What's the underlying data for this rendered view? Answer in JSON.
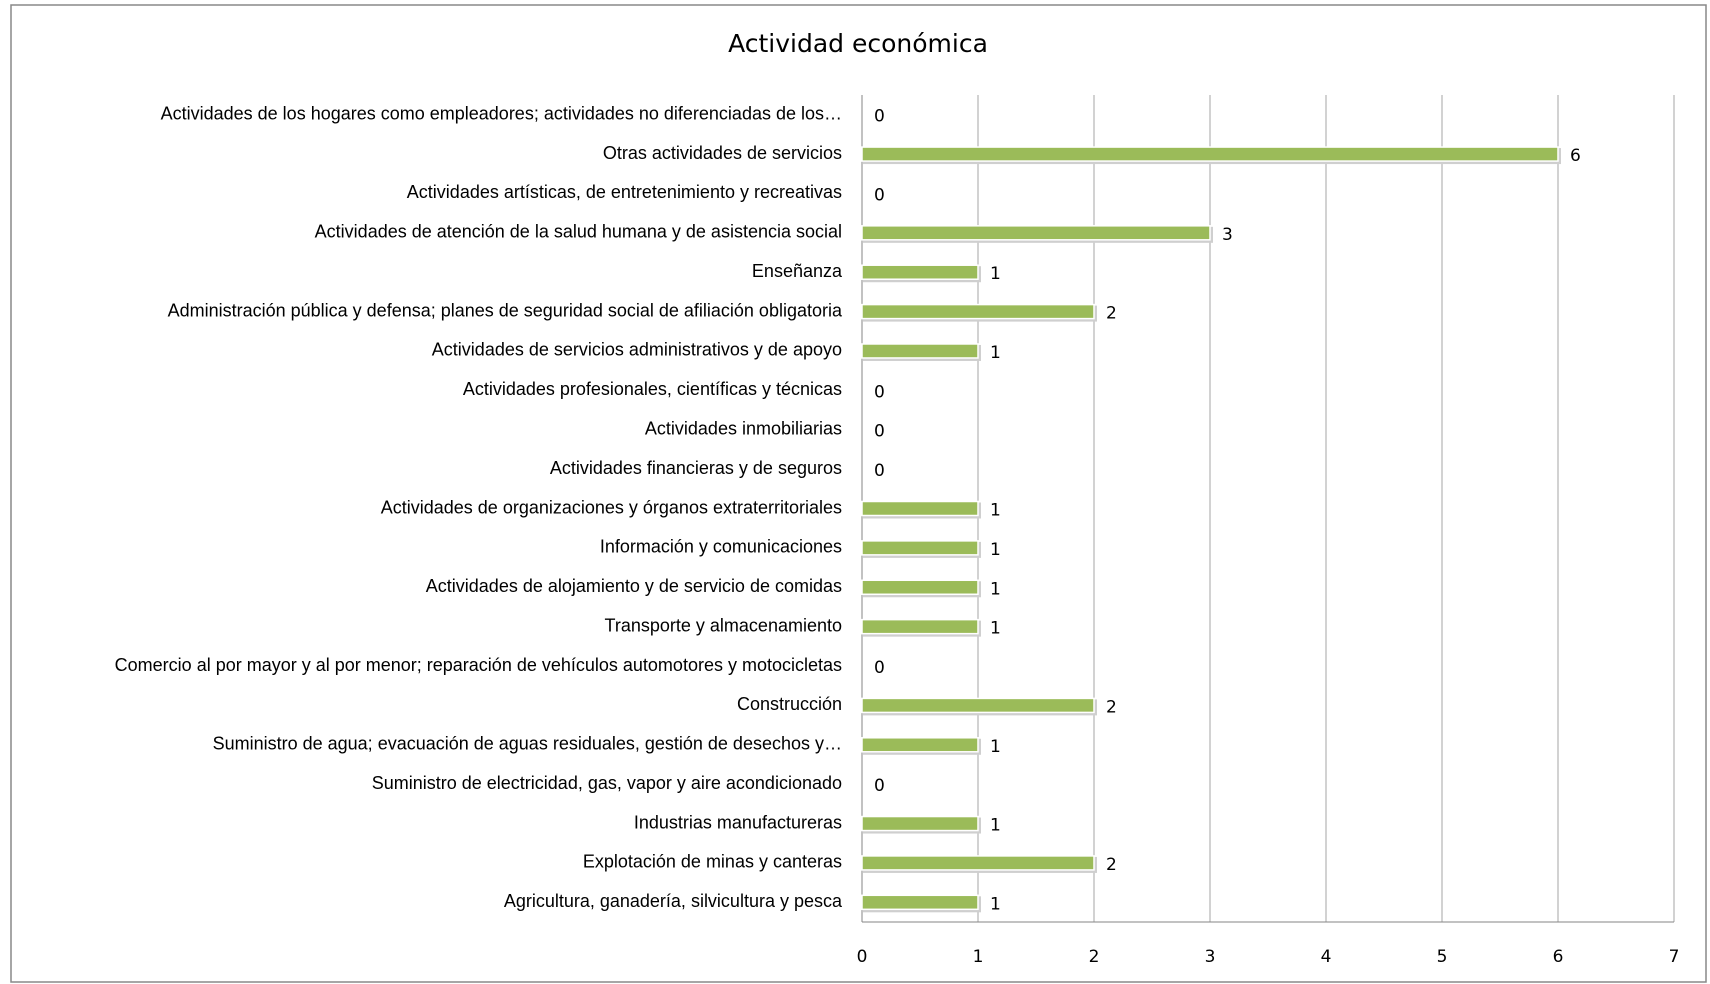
{
  "chart_data": {
    "type": "barh",
    "title": "Actividad económica",
    "categories": [
      "Actividades de los hogares como empleadores; actividades no diferenciadas de los…",
      "Otras actividades de servicios",
      "Actividades artísticas, de entretenimiento y recreativas",
      "Actividades de atención de la salud humana y de asistencia social",
      "Enseñanza",
      "Administración pública y defensa; planes de seguridad social de afiliación obligatoria",
      "Actividades de servicios administrativos y de apoyo",
      "Actividades profesionales, científicas y técnicas",
      "Actividades inmobiliarias",
      "Actividades financieras y de seguros",
      "Actividades de organizaciones y órganos extraterritoriales",
      "Información y comunicaciones",
      "Actividades de alojamiento y de servicio de comidas",
      "Transporte y almacenamiento",
      "Comercio al por mayor y al por menor; reparación de vehículos automotores y motocicletas",
      "Construcción",
      "Suministro de agua; evacuación de aguas residuales, gestión de desechos y…",
      "Suministro de electricidad, gas, vapor y aire acondicionado",
      "Industrias manufactureras",
      "Explotación de minas y canteras",
      "Agricultura, ganadería, silvicultura y pesca"
    ],
    "values": [
      0,
      6,
      0,
      3,
      1,
      2,
      1,
      0,
      0,
      0,
      1,
      1,
      1,
      1,
      0,
      2,
      1,
      0,
      1,
      2,
      1
    ],
    "color": "#9bbb59",
    "xlim": [
      0,
      7
    ],
    "xticks": [
      0,
      1,
      2,
      3,
      4,
      5,
      6,
      7
    ],
    "grid": true
  }
}
